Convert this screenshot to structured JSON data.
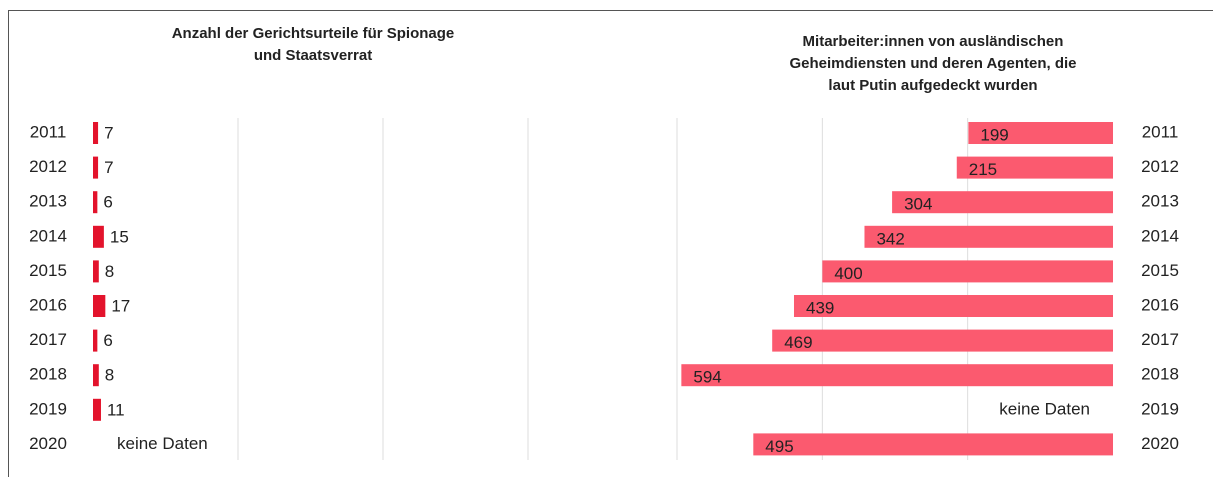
{
  "chart_data": [
    {
      "type": "bar",
      "orientation": "horizontal",
      "direction": "right",
      "title": [
        "Anzahl der Gerichtsurteile für Spionage",
        "und Staatsverrat"
      ],
      "categories": [
        "2011",
        "2012",
        "2013",
        "2014",
        "2015",
        "2016",
        "2017",
        "2018",
        "2019",
        "2020"
      ],
      "values": [
        7,
        7,
        6,
        15,
        8,
        17,
        6,
        8,
        11,
        null
      ],
      "color": "#e3132c",
      "xlim": [
        0,
        600
      ],
      "xticks": [
        0,
        200,
        400,
        600
      ],
      "grid": true,
      "annotation": "keine Daten"
    },
    {
      "type": "bar",
      "orientation": "horizontal",
      "direction": "left",
      "title": [
        "Mitarbeiter:innen von ausländischen",
        "Geheimdiensten und deren Agenten, die",
        "laut Putin aufgedeckt wurden"
      ],
      "categories": [
        "2011",
        "2012",
        "2013",
        "2014",
        "2015",
        "2016",
        "2017",
        "2018",
        "2019",
        "2020"
      ],
      "values": [
        199,
        215,
        304,
        342,
        400,
        439,
        469,
        594,
        null,
        495
      ],
      "color": "#fb5a6f",
      "xlim": [
        0,
        600
      ],
      "xticks": [
        0,
        200,
        400,
        600
      ],
      "grid": true,
      "annotation": "keine Daten"
    }
  ]
}
